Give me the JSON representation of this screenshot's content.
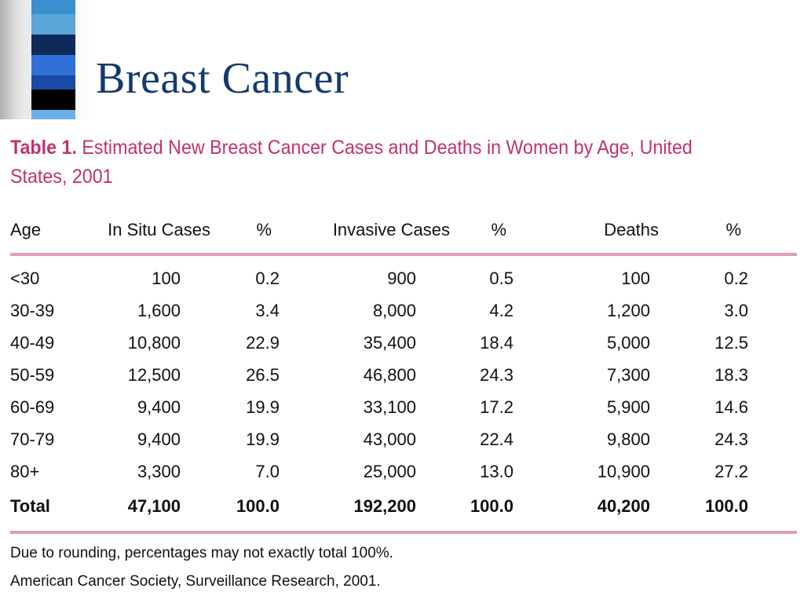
{
  "slide": {
    "title": "Breast Cancer",
    "deco_colors": [
      "#3a8fd0",
      "#5aa6d8",
      "#0d2a5a",
      "#2f6fd8",
      "#1a4aa8",
      "#000000",
      "#6ab0e8"
    ]
  },
  "table": {
    "caption_label": "Table 1.",
    "caption_text": "Estimated New Breast Cancer Cases and Deaths in Women by Age, United States, 2001",
    "caption_color": "#c2316e",
    "rule_color": "#dc9bbc",
    "columns": [
      "Age",
      "In Situ Cases",
      "%",
      "Invasive Cases",
      "%",
      "Deaths",
      "%"
    ],
    "rows": [
      [
        "<30",
        "100",
        "0.2",
        "900",
        "0.5",
        "100",
        "0.2"
      ],
      [
        "30-39",
        "1,600",
        "3.4",
        "8,000",
        "4.2",
        "1,200",
        "3.0"
      ],
      [
        "40-49",
        "10,800",
        "22.9",
        "35,400",
        "18.4",
        "5,000",
        "12.5"
      ],
      [
        "50-59",
        "12,500",
        "26.5",
        "46,800",
        "24.3",
        "7,300",
        "18.3"
      ],
      [
        "60-69",
        "9,400",
        "19.9",
        "33,100",
        "17.2",
        "5,900",
        "14.6"
      ],
      [
        "70-79",
        "9,400",
        "19.9",
        "43,000",
        "22.4",
        "9,800",
        "24.3"
      ],
      [
        "80+",
        "3,300",
        "7.0",
        "25,000",
        "13.0",
        "10,900",
        "27.2"
      ]
    ],
    "total": [
      "Total",
      "47,100",
      "100.0",
      "192,200",
      "100.0",
      "40,200",
      "100.0"
    ],
    "footnotes": [
      "Due to rounding, percentages may not exactly total 100%.",
      "American Cancer Society, Surveillance Research, 2001."
    ]
  }
}
